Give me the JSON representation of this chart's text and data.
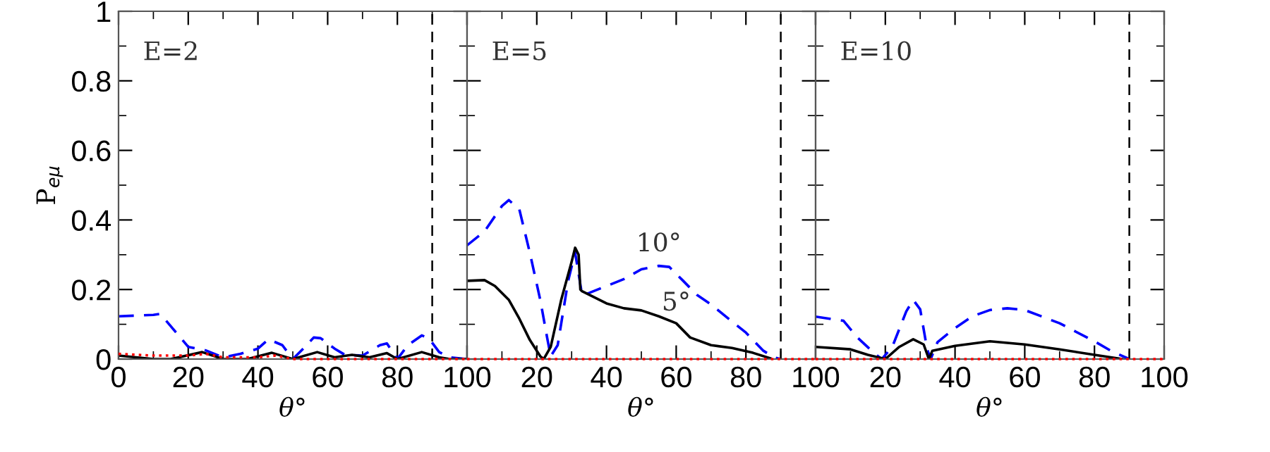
{
  "chart_data": [
    {
      "type": "line",
      "ylabel": "P$_{eμ}$",
      "xlabel": "θ°",
      "annotations": [
        "E=2"
      ],
      "xlim": [
        0,
        100
      ],
      "ylim": [
        0,
        1
      ],
      "xticks": [
        0,
        20,
        40,
        60,
        80,
        100
      ],
      "yticks": [
        0,
        0.2,
        0.4,
        0.6,
        0.8,
        1
      ],
      "grid": false,
      "legend": false,
      "ref_lines": [
        {
          "axis": "x",
          "value": 90,
          "color": "#000000",
          "line_style": "dashed"
        }
      ],
      "series": [
        {
          "color": "#ff0000",
          "line_style": "dotted",
          "x": [
            0,
            10,
            20,
            25,
            30,
            40,
            45,
            50,
            100
          ],
          "values": [
            0.015,
            0.01,
            0.01,
            0.015,
            0.005,
            0.005,
            0.01,
            0,
            0
          ]
        },
        {
          "color": "#0000ff",
          "line_style": "dashed",
          "x": [
            0,
            10,
            12,
            20,
            25,
            30,
            35,
            40,
            43,
            47,
            50,
            53,
            56,
            58,
            62,
            65,
            70,
            75,
            77,
            80,
            83,
            87,
            89,
            92,
            95,
            100
          ],
          "values": [
            0.123,
            0.127,
            0.13,
            0.035,
            0.025,
            0.005,
            0.015,
            0.03,
            0.057,
            0.04,
            0,
            0.03,
            0.062,
            0.06,
            0.03,
            0.012,
            0.01,
            0.04,
            0.045,
            0,
            0.04,
            0.068,
            0.06,
            0.02,
            0.005,
            0
          ]
        },
        {
          "color": "#000000",
          "line_style": "solid",
          "x": [
            0,
            10,
            15,
            24,
            30,
            37,
            44,
            50,
            57,
            62,
            67,
            72,
            77,
            80,
            87,
            92,
            95,
            100
          ],
          "values": [
            0.01,
            0,
            0,
            0.02,
            0,
            0,
            0.018,
            0,
            0.02,
            0.005,
            0.012,
            0.005,
            0.017,
            0,
            0.02,
            0.005,
            0,
            0
          ]
        }
      ]
    },
    {
      "type": "line",
      "xlabel": "θ°",
      "annotations": [
        "E=5",
        "10°",
        "5°"
      ],
      "xlim": [
        0,
        100
      ],
      "ylim": [
        0,
        1
      ],
      "xticks": [
        {
          "value": 0,
          "label": null
        },
        20,
        40,
        60,
        80,
        100
      ],
      "yticks": [
        0,
        0.2,
        0.4,
        0.6,
        0.8,
        1
      ],
      "tick_labels": "x",
      "grid": false,
      "legend": false,
      "ref_lines": [
        {
          "axis": "x",
          "value": 90,
          "color": "#000000",
          "line_style": "dashed"
        }
      ],
      "series": [
        {
          "color": "#ff0000",
          "line_style": "dotted",
          "x": [
            0,
            100
          ],
          "values": [
            0,
            0
          ]
        },
        {
          "color": "#0000ff",
          "line_style": "dashed",
          "x": [
            0,
            5,
            10,
            12,
            15,
            18,
            21,
            23,
            24,
            26,
            29,
            31,
            33,
            35,
            40,
            45,
            50,
            55,
            58,
            62,
            66,
            70,
            75,
            80,
            85,
            88,
            90
          ],
          "values": [
            0.327,
            0.367,
            0.44,
            0.457,
            0.43,
            0.306,
            0.17,
            0.06,
            0.008,
            0.04,
            0.225,
            0.306,
            0.184,
            0.19,
            0.21,
            0.23,
            0.258,
            0.268,
            0.265,
            0.225,
            0.184,
            0.157,
            0.116,
            0.076,
            0.024,
            0.005,
            0
          ]
        },
        {
          "color": "#000000",
          "line_style": "solid",
          "x": [
            0,
            5,
            8,
            12,
            15,
            18,
            21,
            22,
            24,
            27,
            30,
            31,
            32,
            32.5,
            33,
            40,
            45,
            50,
            55,
            60,
            64,
            70,
            76,
            82,
            87
          ],
          "values": [
            0.225,
            0.227,
            0.21,
            0.17,
            0.116,
            0.055,
            0.008,
            0,
            0.035,
            0.17,
            0.28,
            0.32,
            0.3,
            0.2,
            0.195,
            0.16,
            0.146,
            0.14,
            0.123,
            0.103,
            0.062,
            0.04,
            0.032,
            0.018,
            0.002
          ]
        }
      ]
    },
    {
      "type": "line",
      "xlabel": "θ°",
      "annotations": [
        "E=10"
      ],
      "xlim": [
        0,
        100
      ],
      "ylim": [
        0,
        1
      ],
      "xticks": [
        {
          "value": 0,
          "label": null
        },
        20,
        40,
        60,
        80,
        100
      ],
      "yticks": [
        0,
        0.2,
        0.4,
        0.6,
        0.8,
        1
      ],
      "tick_labels": "x",
      "grid": false,
      "legend": false,
      "ref_lines": [
        {
          "axis": "x",
          "value": 90,
          "color": "#000000",
          "line_style": "dashed"
        }
      ],
      "series": [
        {
          "color": "#ff0000",
          "line_style": "dotted",
          "x": [
            0,
            100
          ],
          "values": [
            0,
            0
          ]
        },
        {
          "color": "#0000ff",
          "line_style": "dashed",
          "x": [
            0,
            8,
            12,
            17,
            19,
            22,
            26,
            28,
            30,
            32,
            33,
            35,
            40,
            45,
            50,
            55,
            60,
            70,
            80,
            85,
            90
          ],
          "values": [
            0.122,
            0.11,
            0.062,
            0.015,
            0,
            0.035,
            0.137,
            0.17,
            0.143,
            0.028,
            0,
            0.049,
            0.089,
            0.123,
            0.141,
            0.146,
            0.141,
            0.103,
            0.051,
            0.022,
            0
          ]
        },
        {
          "color": "#000000",
          "line_style": "solid",
          "x": [
            0,
            10,
            15,
            20,
            24,
            28,
            31,
            32.5,
            33.5,
            40,
            50,
            60,
            70,
            80,
            88
          ],
          "values": [
            0.035,
            0.028,
            0.012,
            0,
            0.035,
            0.057,
            0.042,
            0,
            0.024,
            0.038,
            0.051,
            0.042,
            0.028,
            0.012,
            0
          ]
        }
      ]
    }
  ]
}
